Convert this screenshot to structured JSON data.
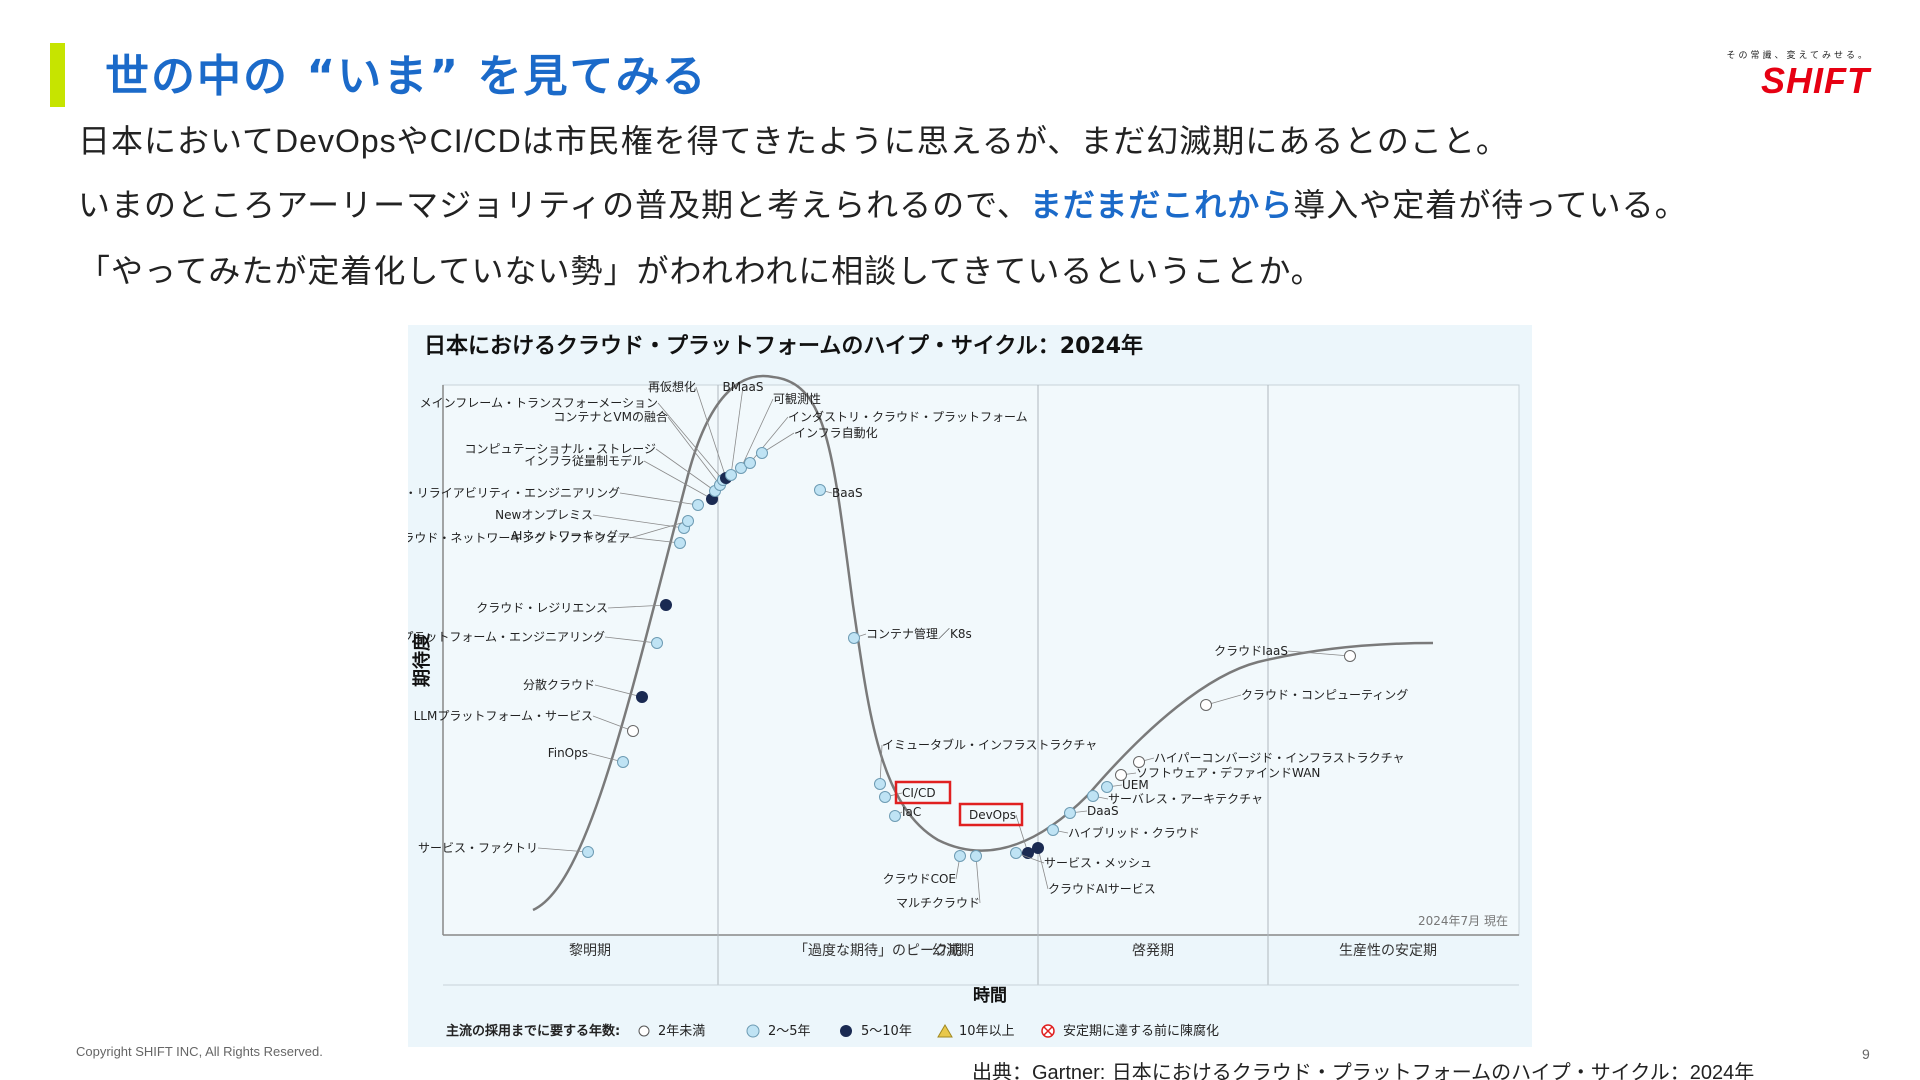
{
  "slide": {
    "title": "世の中の “いま” を見てみる",
    "logo_tagline": "その常識、変えてみせる。",
    "logo_word": "SHIFT",
    "line1_a": "日本において",
    "line1_b": "DevOps",
    "line1_c": "や",
    "line1_d": "CI/CD",
    "line1_e": "は市民権を得てきたように思えるが、まだ幻滅期にあるとのこと。",
    "line2_a": "いまのところアーリーマジョリティの普及期と考えられるので、",
    "line2_b": "まだまだこれから",
    "line2_c": "導入や定着が待っている。",
    "line3": "「やってみたが定着化していない勢」がわれわれに相談してきているということか。",
    "copyright": "Copyright SHIFT INC, All Rights Reserved.",
    "page_number": "9",
    "source_a": "出典：",
    "source_b": "Gartner:",
    "source_c": " 日本におけるクラウド・プラットフォームのハイプ・サイクル：",
    "source_d": "2024年"
  },
  "chart_data": {
    "type": "hype-cycle",
    "title": "日本におけるクラウド・プラットフォームのハイプ・サイクル：2024年",
    "ylabel": "期待度",
    "xlabel": "時間",
    "date_note": "2024年7月 現在",
    "phases": [
      "黎明期",
      "「過度な期待」のピーク期",
      "幻滅期",
      "啓発期",
      "生産性の安定期"
    ],
    "legend_title": "主流の採用までに要する年数:",
    "legend": [
      {
        "label": "2年未満",
        "marker": "open-circle"
      },
      {
        "label": "2〜5年",
        "marker": "light-blue-circle"
      },
      {
        "label": "5〜10年",
        "marker": "dark-navy-circle"
      },
      {
        "label": "10年以上",
        "marker": "yellow-triangle"
      },
      {
        "label": "安定期に達する前に陳腐化",
        "marker": "red-x-circle"
      }
    ],
    "highlighted": [
      "CI/CD",
      "DevOps"
    ],
    "colors": {
      "curve": "#7a7a7a",
      "light_marker": "#bfe3f4",
      "dark_marker": "#1a2a52",
      "highlight": "#e02020",
      "panel_bg": "#ecf6fb"
    },
    "points": [
      {
        "label": "サービス・ファクトリ",
        "phase": "黎明期",
        "marker": "light"
      },
      {
        "label": "FinOps",
        "phase": "黎明期",
        "marker": "light"
      },
      {
        "label": "LLMプラットフォーム・サービス",
        "phase": "黎明期",
        "marker": "open"
      },
      {
        "label": "分散クラウド",
        "phase": "黎明期",
        "marker": "dark"
      },
      {
        "label": "プラットフォーム・エンジニアリング",
        "phase": "黎明期",
        "marker": "light"
      },
      {
        "label": "クラウド・レジリエンス",
        "phase": "黎明期",
        "marker": "dark"
      },
      {
        "label": "AIネットワーキング",
        "phase": "黎明期",
        "marker": "light"
      },
      {
        "label": "Newオンプレミス",
        "phase": "黎明期",
        "marker": "light"
      },
      {
        "label": "マルチクラウド・ネットワーキング・ソフトウェア",
        "phase": "黎明期",
        "marker": "light"
      },
      {
        "label": "サイト・リライアビリティ・エンジニアリング",
        "phase": "黎明期",
        "marker": "light"
      },
      {
        "label": "インフラ従量制モデル",
        "phase": "黎明期",
        "marker": "dark"
      },
      {
        "label": "コンピュテーショナル・ストレージ",
        "phase": "黎明期",
        "marker": "light"
      },
      {
        "label": "コンテナとVMの融合",
        "phase": "「過度な期待」のピーク期",
        "marker": "light"
      },
      {
        "label": "メインフレーム・トランスフォーメーション",
        "phase": "「過度な期待」のピーク期",
        "marker": "light"
      },
      {
        "label": "再仮想化",
        "phase": "「過度な期待」のピーク期",
        "marker": "dark"
      },
      {
        "label": "BMaaS",
        "phase": "「過度な期待」のピーク期",
        "marker": "light"
      },
      {
        "label": "可観測性",
        "phase": "「過度な期待」のピーク期",
        "marker": "light"
      },
      {
        "label": "インダストリ・クラウド・プラットフォーム",
        "phase": "「過度な期待」のピーク期",
        "marker": "light"
      },
      {
        "label": "インフラ自動化",
        "phase": "「過度な期待」のピーク期",
        "marker": "light"
      },
      {
        "label": "BaaS",
        "phase": "「過度な期待」のピーク期",
        "marker": "light"
      },
      {
        "label": "コンテナ管理／K8s",
        "phase": "幻滅期",
        "marker": "light"
      },
      {
        "label": "イミュータブル・インフラストラクチャ",
        "phase": "幻滅期",
        "marker": "light"
      },
      {
        "label": "CI/CD",
        "phase": "幻滅期",
        "marker": "light"
      },
      {
        "label": "IaC",
        "phase": "幻滅期",
        "marker": "light"
      },
      {
        "label": "クラウドCOE",
        "phase": "幻滅期",
        "marker": "light"
      },
      {
        "label": "マルチクラウド",
        "phase": "幻滅期",
        "marker": "light"
      },
      {
        "label": "DevOps",
        "phase": "幻滅期",
        "marker": "dark"
      },
      {
        "label": "クラウドAIサービス",
        "phase": "幻滅期",
        "marker": "dark"
      },
      {
        "label": "サービス・メッシュ",
        "phase": "啓発期",
        "marker": "light"
      },
      {
        "label": "ハイブリッド・クラウド",
        "phase": "啓発期",
        "marker": "light"
      },
      {
        "label": "DaaS",
        "phase": "啓発期",
        "marker": "light"
      },
      {
        "label": "サーバレス・アーキテクチャ",
        "phase": "啓発期",
        "marker": "light"
      },
      {
        "label": "UEM",
        "phase": "啓発期",
        "marker": "light"
      },
      {
        "label": "ソフトウェア・デファインドWAN",
        "phase": "啓発期",
        "marker": "open"
      },
      {
        "label": "ハイパーコンバージド・インフラストラクチャ",
        "phase": "啓発期",
        "marker": "open"
      },
      {
        "label": "クラウド・コンピューティング",
        "phase": "啓発期",
        "marker": "open"
      },
      {
        "label": "クラウドIaaS",
        "phase": "啓発期",
        "marker": "open"
      }
    ]
  }
}
